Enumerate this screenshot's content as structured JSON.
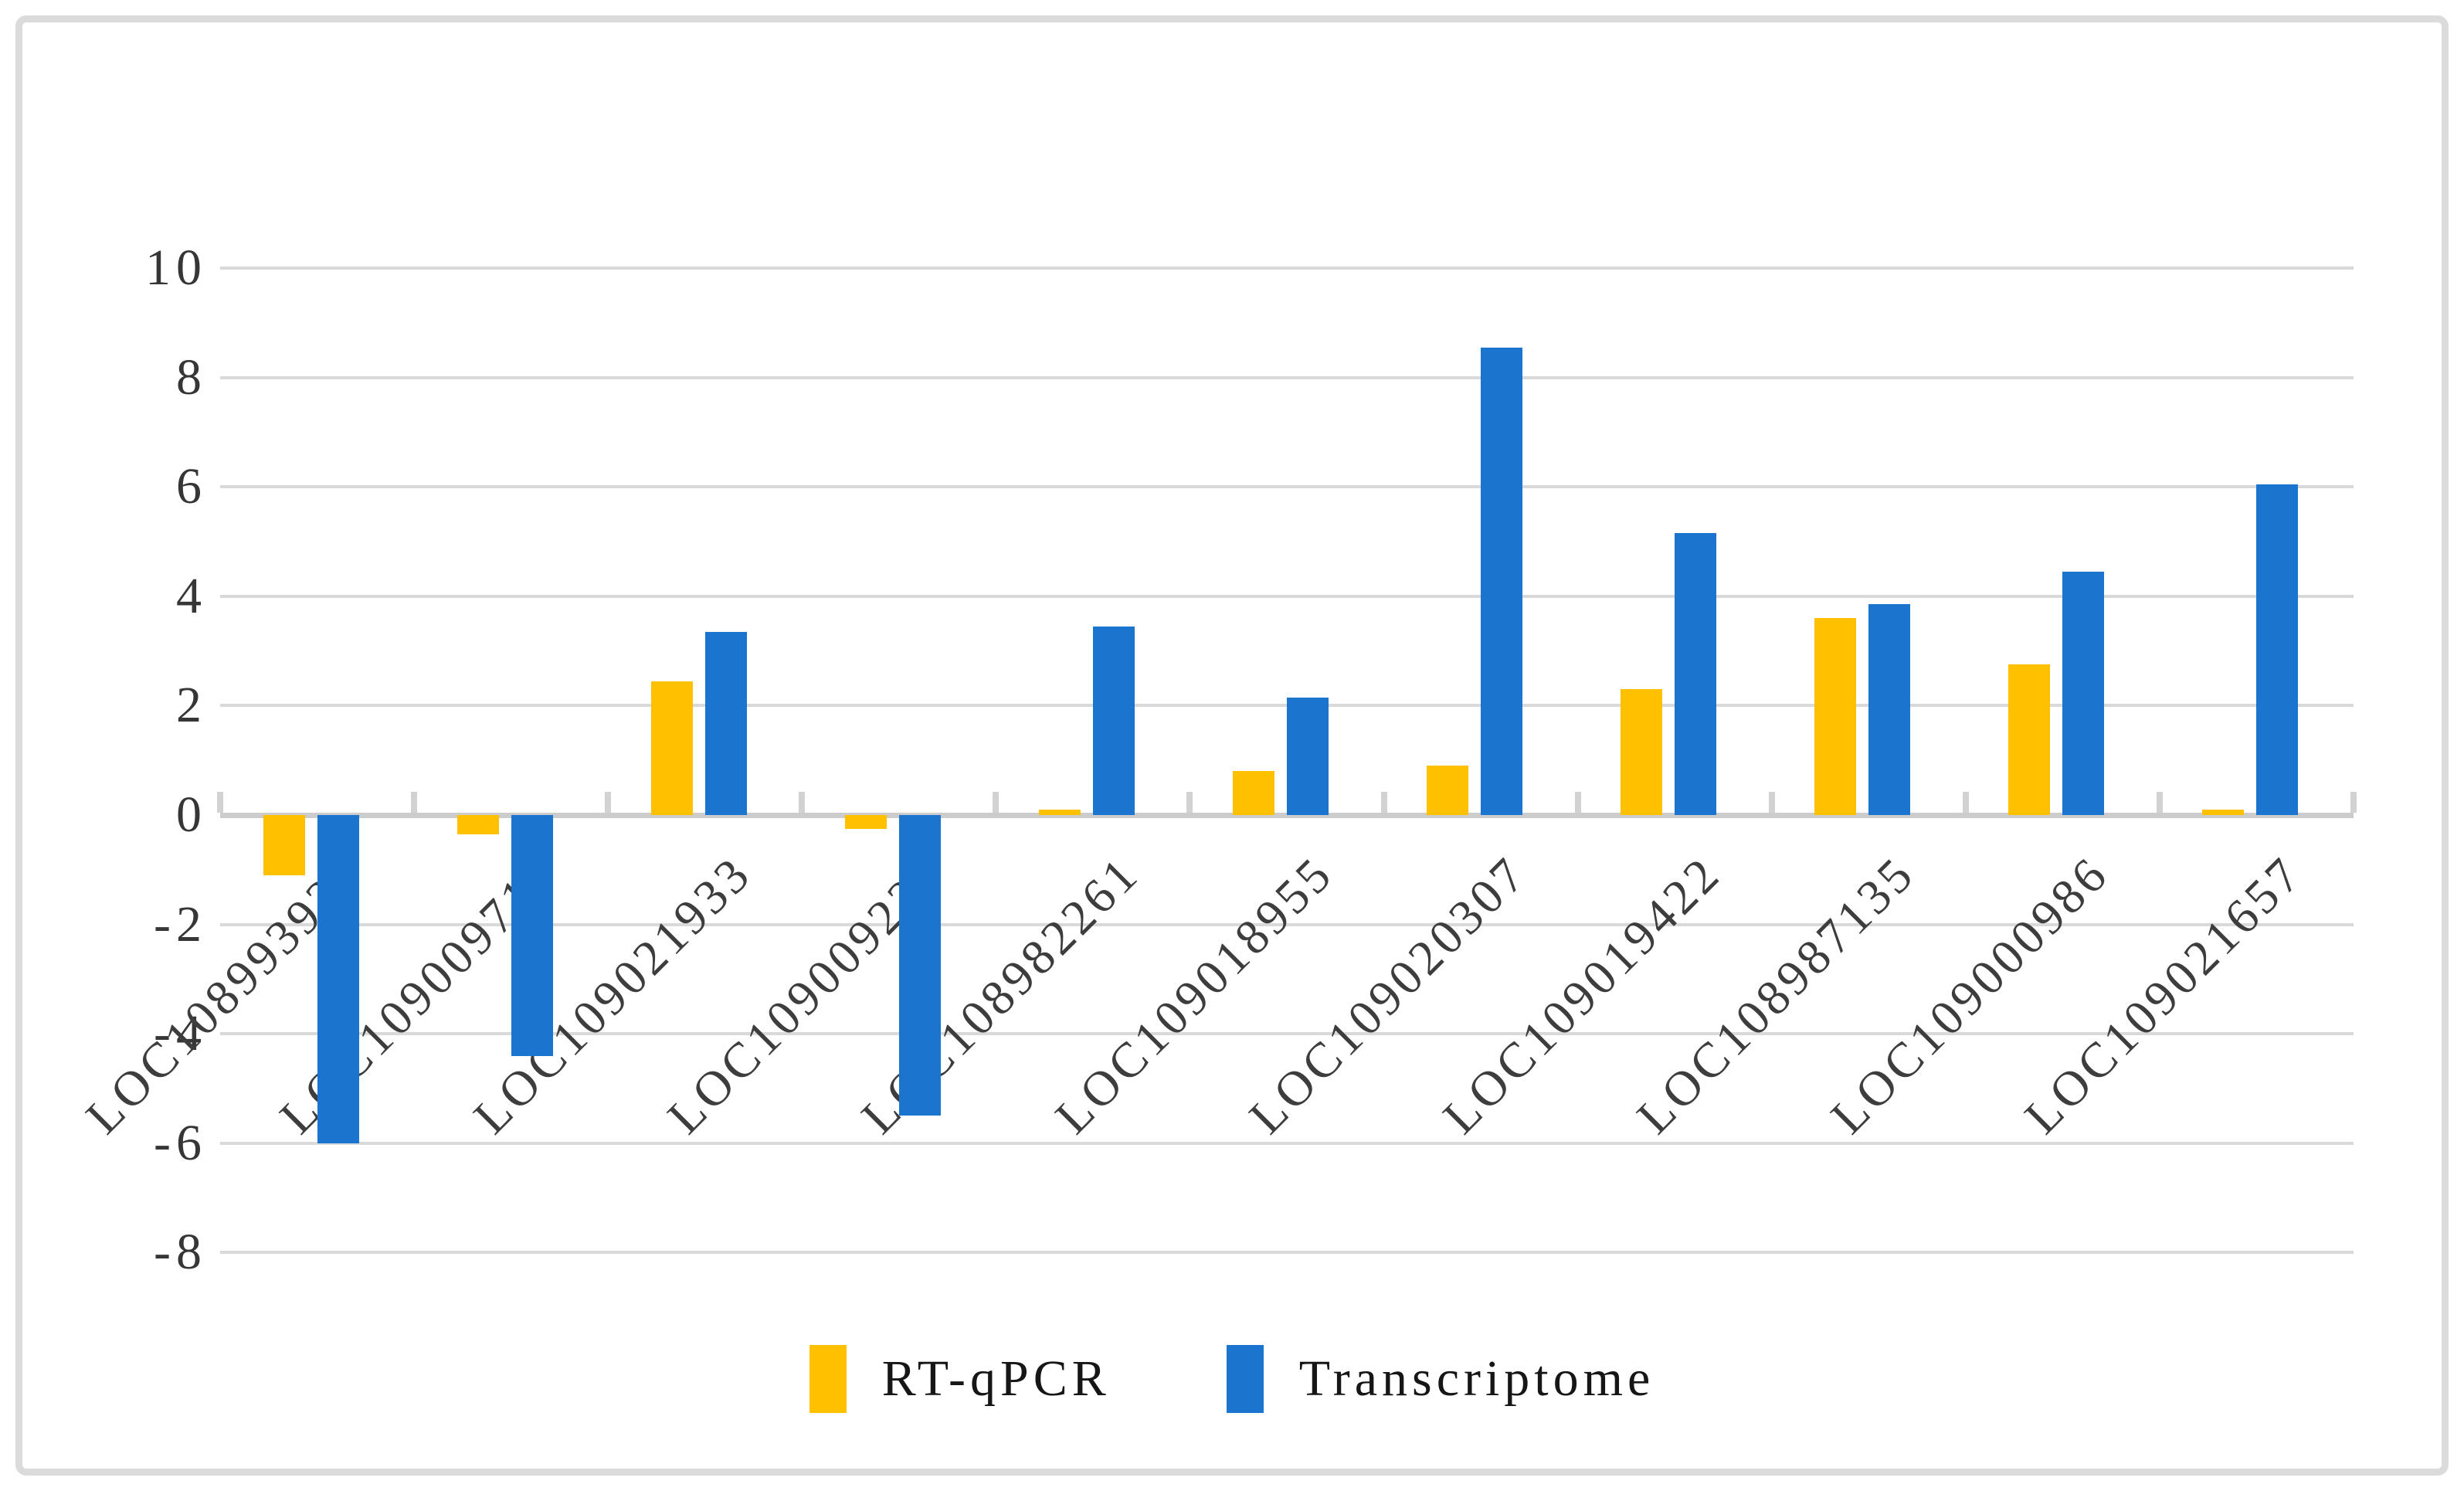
{
  "chart_data": {
    "type": "bar",
    "title": "",
    "xlabel": "",
    "ylabel": "",
    "categories": [
      "LOC108993939",
      "LOC109009710",
      "LOC109021933",
      "LOC109009223",
      "LOC108982261",
      "LOC109018955",
      "LOC109020307",
      "LOC109019422",
      "LOC108987135",
      "LOC109000986",
      "LOC109021657"
    ],
    "series": [
      {
        "name": "RT-qPCR",
        "color": "#FFC000",
        "values": [
          -1.1,
          -0.35,
          2.45,
          -0.25,
          0.1,
          0.8,
          0.9,
          2.3,
          3.6,
          2.75,
          0.1
        ]
      },
      {
        "name": "Transcriptome",
        "color": "#1B75CE",
        "values": [
          -6.0,
          -4.4,
          3.35,
          -5.5,
          3.45,
          2.15,
          8.55,
          5.15,
          3.85,
          4.45,
          6.05
        ]
      }
    ],
    "y_axis": {
      "ticks": [
        10,
        8,
        6,
        4,
        2,
        0,
        -2,
        -4,
        -6,
        -8
      ],
      "ylim": [
        -8,
        10
      ],
      "gridlines": true,
      "gridline_color": "#D9D9D9",
      "zero_axis_color": "#CCCCCC"
    },
    "legend": {
      "position": "bottom",
      "entries": [
        "RT-qPCR",
        "Transcriptome"
      ]
    },
    "canvas_border_color": "#DBDBDB",
    "background_color": "#FFFFFF"
  }
}
